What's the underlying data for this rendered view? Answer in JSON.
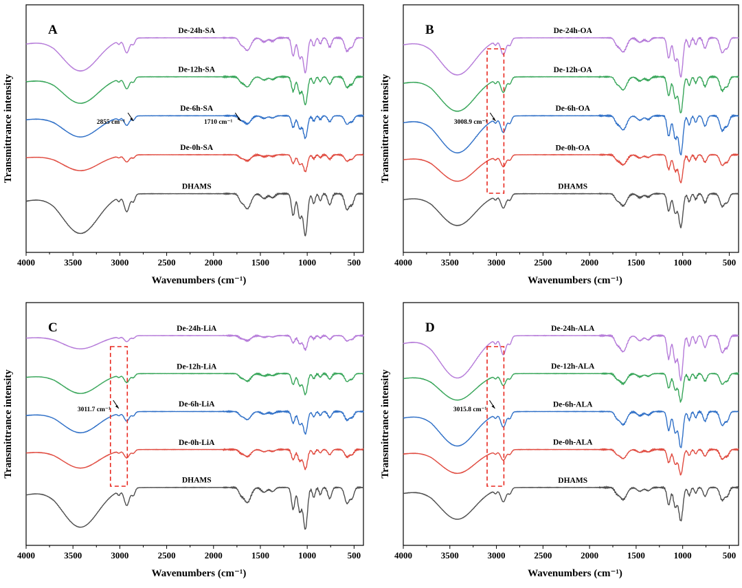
{
  "chart_data": [
    {
      "type": "line",
      "panel_label": "A",
      "xlabel": "Wavenumbers (cm⁻¹)",
      "ylabel": "Transmittrance intensity",
      "xlim": [
        4000,
        400
      ],
      "xticks": [
        4000,
        3500,
        3000,
        2500,
        2000,
        1500,
        1000,
        500
      ],
      "series": [
        {
          "name": "De-24h-SA",
          "color": "#b57ad9",
          "offset": 4.0,
          "scale": 1.25
        },
        {
          "name": "De-12h-SA",
          "color": "#36a558",
          "offset": 3.0,
          "scale": 1.0
        },
        {
          "name": "De-6h-SA",
          "color": "#2e6fc7",
          "offset": 2.0,
          "scale": 0.8
        },
        {
          "name": "De-0h-SA",
          "color": "#e04a3f",
          "offset": 1.0,
          "scale": 0.6
        },
        {
          "name": "DHAMS",
          "color": "#4d4d4d",
          "offset": 0.0,
          "scale": 1.5
        }
      ],
      "annotations": [
        {
          "text": "2855 cm⁻¹",
          "x": 2855
        },
        {
          "text": "1710 cm⁻¹",
          "x": 1710
        }
      ],
      "highlight_box": null
    },
    {
      "type": "line",
      "panel_label": "B",
      "xlabel": "Wavenumbers (cm⁻¹)",
      "ylabel": "Transmittrance intensity",
      "xlim": [
        4000,
        400
      ],
      "xticks": [
        4000,
        3500,
        3000,
        2500,
        2000,
        1500,
        1000,
        500
      ],
      "series": [
        {
          "name": "De-24h-OA",
          "color": "#b57ad9",
          "offset": 4.0,
          "scale": 1.4
        },
        {
          "name": "De-12h-OA",
          "color": "#36a558",
          "offset": 3.0,
          "scale": 1.3
        },
        {
          "name": "De-6h-OA",
          "color": "#2e6fc7",
          "offset": 2.0,
          "scale": 1.4
        },
        {
          "name": "De-0h-OA",
          "color": "#e04a3f",
          "offset": 1.0,
          "scale": 1.0
        },
        {
          "name": "DHAMS",
          "color": "#4d4d4d",
          "offset": 0.0,
          "scale": 1.2
        }
      ],
      "annotations": [
        {
          "text": "3008.9 cm⁻¹",
          "x": 3008.9
        }
      ],
      "highlight_box": {
        "x_from": 3100,
        "x_to": 2920
      }
    },
    {
      "type": "line",
      "panel_label": "C",
      "xlabel": "Wavenumbers (cm⁻¹)",
      "ylabel": "Transmittrance intensity",
      "xlim": [
        4000,
        400
      ],
      "xticks": [
        4000,
        3500,
        3000,
        2500,
        2000,
        1500,
        1000,
        500
      ],
      "series": [
        {
          "name": "De-24h-LiA",
          "color": "#b57ad9",
          "offset": 4.0,
          "scale": 0.5
        },
        {
          "name": "De-12h-LiA",
          "color": "#36a558",
          "offset": 3.0,
          "scale": 0.75
        },
        {
          "name": "De-6h-LiA",
          "color": "#2e6fc7",
          "offset": 2.0,
          "scale": 0.8
        },
        {
          "name": "De-0h-LiA",
          "color": "#e04a3f",
          "offset": 1.0,
          "scale": 0.7
        },
        {
          "name": "DHAMS",
          "color": "#4d4d4d",
          "offset": 0.0,
          "scale": 1.5
        }
      ],
      "annotations": [
        {
          "text": "3011.7 cm⁻¹",
          "x": 3011.7
        }
      ],
      "highlight_box": {
        "x_from": 3100,
        "x_to": 2920
      }
    },
    {
      "type": "line",
      "panel_label": "D",
      "xlabel": "Wavenumbers (cm⁻¹)",
      "ylabel": "Transmittrance intensity",
      "xlim": [
        4000,
        400
      ],
      "xticks": [
        4000,
        3500,
        3000,
        2500,
        2000,
        1500,
        1000,
        500
      ],
      "series": [
        {
          "name": "De-24h-ALA",
          "color": "#b57ad9",
          "offset": 4.0,
          "scale": 1.6
        },
        {
          "name": "De-12h-ALA",
          "color": "#36a558",
          "offset": 3.0,
          "scale": 1.0
        },
        {
          "name": "De-6h-ALA",
          "color": "#2e6fc7",
          "offset": 2.0,
          "scale": 1.3
        },
        {
          "name": "De-0h-ALA",
          "color": "#e04a3f",
          "offset": 1.0,
          "scale": 0.9
        },
        {
          "name": "DHAMS",
          "color": "#4d4d4d",
          "offset": 0.0,
          "scale": 1.2
        }
      ],
      "annotations": [
        {
          "text": "3015.8 cm⁻¹",
          "x": 3015.8
        }
      ],
      "highlight_box": {
        "x_from": 3100,
        "x_to": 2920
      }
    }
  ]
}
